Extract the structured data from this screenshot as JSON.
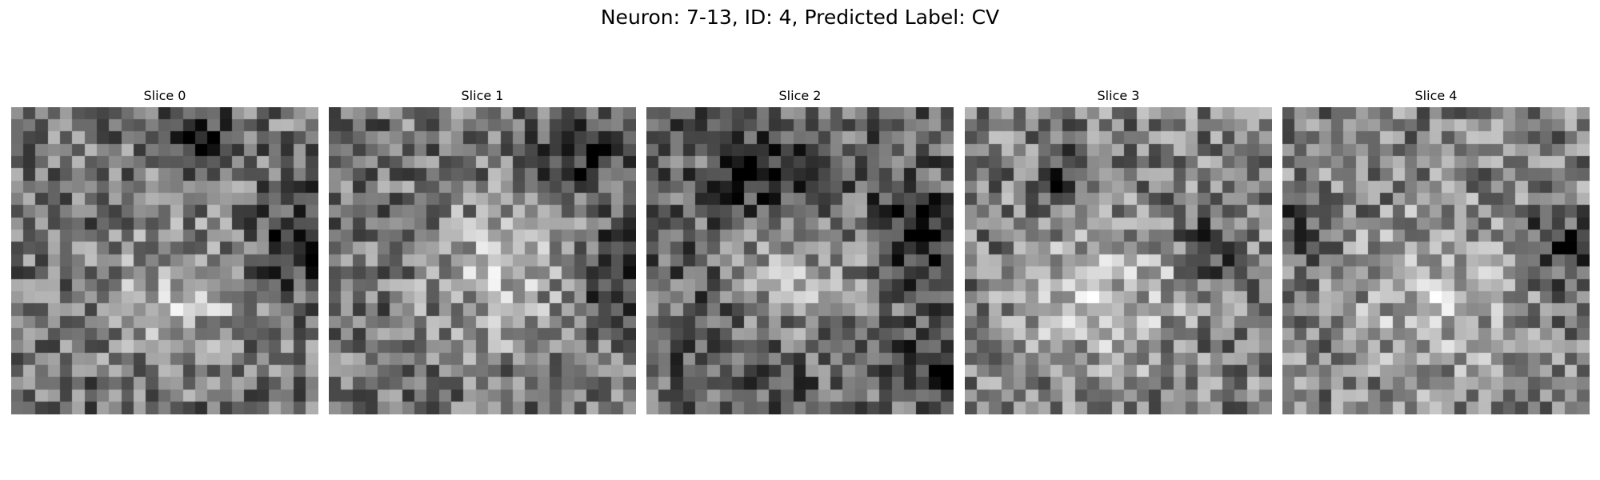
{
  "figure": {
    "title": "Neuron: 7-13, ID: 4, Predicted Label: CV"
  },
  "panels": [
    {
      "title": "Slice 0"
    },
    {
      "title": "Slice 1"
    },
    {
      "title": "Slice 2"
    },
    {
      "title": "Slice 3"
    },
    {
      "title": "Slice 4"
    }
  ],
  "image": {
    "colormap": "grayscale",
    "grid_cells_per_side": 25
  }
}
